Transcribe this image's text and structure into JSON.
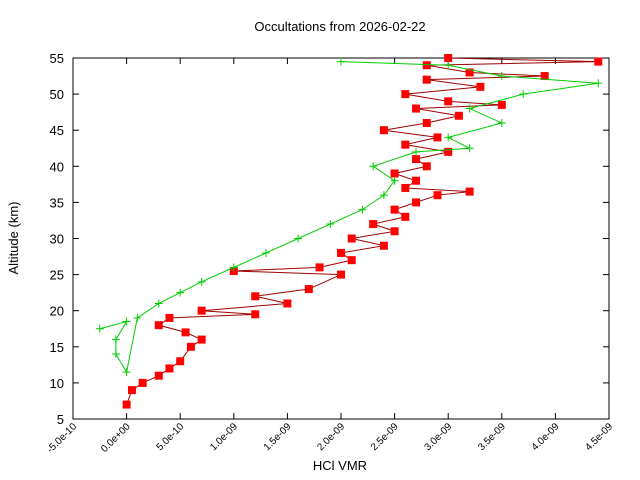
{
  "chart_data": {
    "type": "scatter-line",
    "title": "Occultations from 2026-02-22",
    "x_label": "HCl VMR",
    "y_label": "Altitude (km)",
    "xlim": [
      -5e-10,
      4.5e-09
    ],
    "ylim": [
      5,
      55
    ],
    "xticks": [
      {
        "value": -5e-10,
        "label": "-5.0e-10"
      },
      {
        "value": 0,
        "label": "0.0e+00"
      },
      {
        "value": 5e-10,
        "label": "5.0e-10"
      },
      {
        "value": 1e-09,
        "label": "1.0e-09"
      },
      {
        "value": 1.5e-09,
        "label": "1.5e-09"
      },
      {
        "value": 2e-09,
        "label": "2.0e-09"
      },
      {
        "value": 2.5e-09,
        "label": "2.5e-09"
      },
      {
        "value": 3e-09,
        "label": "3.0e-09"
      },
      {
        "value": 3.5e-09,
        "label": "3.5e-09"
      },
      {
        "value": 4e-09,
        "label": "4.0e-09"
      },
      {
        "value": 4.5e-09,
        "label": "4.5e-09"
      }
    ],
    "yticks": [
      5,
      10,
      15,
      20,
      25,
      30,
      35,
      40,
      45,
      50,
      55
    ],
    "series": [
      {
        "color": "#ff0000",
        "line_color": "#a00000",
        "marker": "square",
        "x": [
          0,
          5e-11,
          1.5e-10,
          3e-10,
          4e-10,
          5e-10,
          6e-10,
          7e-10,
          5.5e-10,
          3e-10,
          4e-10,
          1.2e-09,
          7e-10,
          1.5e-09,
          1.2e-09,
          1.7e-09,
          2e-09,
          1e-09,
          1.8e-09,
          2.1e-09,
          2e-09,
          2.4e-09,
          2.1e-09,
          2.5e-09,
          2.3e-09,
          2.6e-09,
          2.5e-09,
          2.7e-09,
          2.9e-09,
          3.2e-09,
          2.6e-09,
          2.7e-09,
          2.5e-09,
          2.8e-09,
          2.7e-09,
          3e-09,
          2.6e-09,
          2.9e-09,
          2.4e-09,
          2.8e-09,
          3.1e-09,
          2.7e-09,
          3.5e-09,
          3e-09,
          2.6e-09,
          3.3e-09,
          2.8e-09,
          3.9e-09,
          3.2e-09,
          2.8e-09,
          4.4e-09,
          3e-09
        ],
        "values": [
          7,
          9,
          10,
          11,
          12,
          13,
          15,
          16,
          17,
          18,
          19,
          19.5,
          20,
          21,
          22,
          23,
          25,
          25.5,
          26,
          27,
          28,
          29,
          30,
          31,
          32,
          33,
          34,
          35,
          36,
          36.5,
          37,
          38,
          39,
          40,
          41,
          42,
          43,
          44,
          45,
          46,
          47,
          48,
          48.5,
          49,
          50,
          51,
          52,
          52.5,
          53,
          54,
          54.5,
          55
        ]
      },
      {
        "color": "#00cc00",
        "line_color": "#00cc00",
        "marker": "plus",
        "x": [
          -2.5e-10,
          0,
          -1e-10,
          -1e-10,
          0,
          1e-10,
          3e-10,
          5e-10,
          7e-10,
          1e-09,
          1.3e-09,
          1.6e-09,
          1.9e-09,
          2.2e-09,
          2.4e-09,
          2.5e-09,
          2.3e-09,
          2.7e-09,
          3.2e-09,
          3e-09,
          3.5e-09,
          3.2e-09,
          3.7e-09,
          4.4e-09,
          3.5e-09,
          3e-09,
          2e-09
        ],
        "values": [
          17.5,
          18.5,
          16,
          14,
          11.5,
          19,
          21,
          22.5,
          24,
          26,
          28,
          30,
          32,
          34,
          36,
          38,
          40,
          42,
          42.5,
          44,
          46,
          48,
          50,
          51.5,
          52.5,
          54,
          54.5
        ]
      }
    ]
  }
}
